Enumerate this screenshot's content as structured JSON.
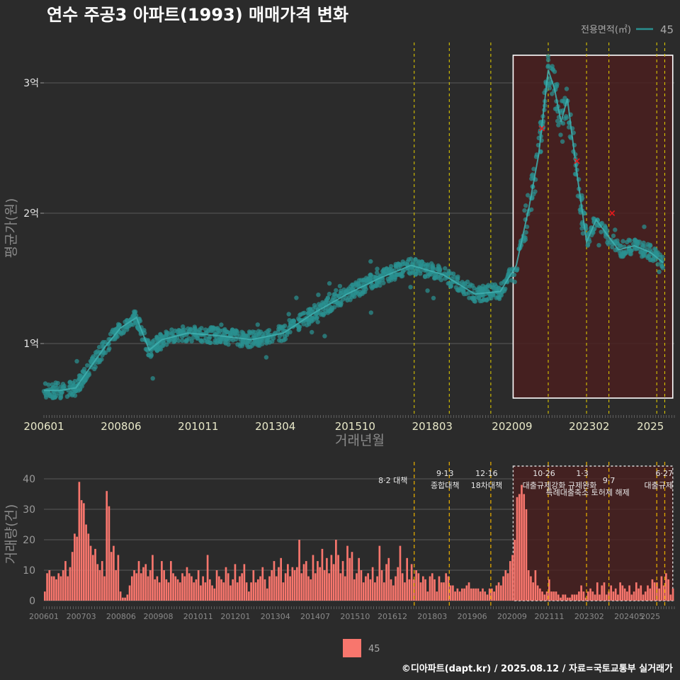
{
  "chart_data": [
    {
      "type": "scatter",
      "title": "연수 주공3 아파트(1993) 매매가격 변화",
      "xlabel": "거래년월",
      "ylabel": "평균가(원)",
      "x_tick_labels": [
        "200601",
        "200806",
        "201011",
        "201304",
        "201510",
        "201803",
        "202009",
        "202302",
        "2025"
      ],
      "y_ticks": [
        {
          "value": 1,
          "label": "1억"
        },
        {
          "value": 2,
          "label": "2억"
        },
        {
          "value": 3,
          "label": "3억"
        }
      ],
      "ylim": [
        0.5,
        3.25
      ],
      "y_unit": "억",
      "legend_title": "전용면적(㎡)",
      "legend_label": "45",
      "series_color": "#2a9090",
      "trend_points": [
        {
          "x": 2006.0,
          "y": 0.64
        },
        {
          "x": 2006.5,
          "y": 0.64
        },
        {
          "x": 2007.0,
          "y": 0.66
        },
        {
          "x": 2007.4,
          "y": 0.8
        },
        {
          "x": 2007.9,
          "y": 0.97
        },
        {
          "x": 2008.4,
          "y": 1.12
        },
        {
          "x": 2008.9,
          "y": 1.2
        },
        {
          "x": 2009.3,
          "y": 0.95
        },
        {
          "x": 2009.7,
          "y": 1.03
        },
        {
          "x": 2010.5,
          "y": 1.08
        },
        {
          "x": 2011.5,
          "y": 1.06
        },
        {
          "x": 2012.5,
          "y": 1.03
        },
        {
          "x": 2013.5,
          "y": 1.08
        },
        {
          "x": 2014.5,
          "y": 1.24
        },
        {
          "x": 2015.5,
          "y": 1.38
        },
        {
          "x": 2016.5,
          "y": 1.5
        },
        {
          "x": 2017.5,
          "y": 1.6
        },
        {
          "x": 2018.5,
          "y": 1.53
        },
        {
          "x": 2019.5,
          "y": 1.38
        },
        {
          "x": 2020.3,
          "y": 1.4
        },
        {
          "x": 2020.8,
          "y": 1.6
        },
        {
          "x": 2021.2,
          "y": 2.05
        },
        {
          "x": 2021.5,
          "y": 2.45
        },
        {
          "x": 2021.8,
          "y": 3.1
        },
        {
          "x": 2022.0,
          "y": 2.95
        },
        {
          "x": 2022.2,
          "y": 2.7
        },
        {
          "x": 2022.4,
          "y": 2.88
        },
        {
          "x": 2022.7,
          "y": 2.3
        },
        {
          "x": 2023.0,
          "y": 1.78
        },
        {
          "x": 2023.3,
          "y": 1.95
        },
        {
          "x": 2023.6,
          "y": 1.85
        },
        {
          "x": 2024.0,
          "y": 1.72
        },
        {
          "x": 2024.5,
          "y": 1.75
        },
        {
          "x": 2025.0,
          "y": 1.7
        },
        {
          "x": 2025.4,
          "y": 1.62
        }
      ],
      "red_markers": [
        {
          "x": 2021.6,
          "y": 2.65
        },
        {
          "x": 2022.7,
          "y": 2.4
        },
        {
          "x": 2023.8,
          "y": 2.0
        }
      ],
      "policy_lines_x": [
        2017.6,
        2018.7,
        2020.0,
        2021.8,
        2023.0,
        2023.7,
        2025.2,
        2025.45
      ],
      "highlight_range_x": [
        2020.7,
        2025.7
      ]
    },
    {
      "type": "bar",
      "xlabel": "",
      "ylabel": "거래량(건)",
      "x_tick_labels": [
        "200601",
        "200703",
        "200806",
        "200908",
        "201011",
        "201201",
        "201304",
        "201407",
        "201510",
        "201612",
        "201803",
        "201906",
        "202009",
        "202111",
        "202302",
        "202405",
        "2025"
      ],
      "y_ticks": [
        0,
        10,
        20,
        30,
        40
      ],
      "ylim": [
        0,
        44
      ],
      "bar_color": "#f8766d",
      "legend_label": "45",
      "start_month": "2006-01",
      "monthly_values": [
        3,
        9,
        10,
        8,
        8,
        7,
        9,
        8,
        10,
        13,
        8,
        11,
        16,
        22,
        21,
        39,
        33,
        32,
        25,
        22,
        18,
        15,
        17,
        12,
        10,
        13,
        8,
        36,
        31,
        16,
        18,
        10,
        15,
        3,
        1,
        1,
        2,
        5,
        8,
        10,
        9,
        13,
        9,
        11,
        12,
        8,
        10,
        15,
        7,
        8,
        6,
        13,
        10,
        7,
        6,
        13,
        9,
        8,
        7,
        6,
        9,
        8,
        11,
        9,
        8,
        6,
        7,
        10,
        5,
        8,
        6,
        15,
        7,
        5,
        4,
        10,
        8,
        7,
        6,
        11,
        9,
        5,
        7,
        12,
        6,
        8,
        9,
        12,
        6,
        3,
        6,
        10,
        6,
        7,
        8,
        11,
        7,
        4,
        8,
        10,
        13,
        8,
        11,
        14,
        6,
        9,
        12,
        8,
        11,
        10,
        11,
        20,
        9,
        12,
        13,
        8,
        7,
        15,
        9,
        13,
        11,
        17,
        10,
        14,
        9,
        15,
        12,
        20,
        15,
        9,
        13,
        8,
        18,
        14,
        16,
        7,
        9,
        14,
        10,
        6,
        8,
        9,
        7,
        11,
        6,
        8,
        18,
        10,
        6,
        12,
        14,
        7,
        5,
        8,
        11,
        18,
        9,
        6,
        14,
        7,
        12,
        7,
        10,
        9,
        6,
        8,
        7,
        3,
        8,
        9,
        7,
        3,
        8,
        6,
        6,
        9,
        8,
        5,
        5,
        3,
        4,
        3,
        4,
        4,
        5,
        6,
        4,
        4,
        4,
        4,
        3,
        4,
        3,
        2,
        4,
        4,
        3,
        5,
        6,
        5,
        8,
        10,
        9,
        13,
        15,
        20,
        34,
        35,
        38,
        35,
        30,
        10,
        8,
        6,
        10,
        5,
        4,
        3,
        2,
        3,
        7,
        3,
        3,
        3,
        2,
        1,
        2,
        2,
        1,
        1,
        2,
        2,
        2,
        3,
        5,
        3,
        1,
        3,
        4,
        3,
        2,
        6,
        2,
        5,
        6,
        2,
        3,
        5,
        3,
        4,
        2,
        6,
        5,
        4,
        3,
        5,
        2,
        3,
        6,
        4,
        5,
        2,
        3,
        5,
        4,
        7,
        6,
        6,
        4,
        8,
        5,
        9,
        7,
        2,
        4
      ],
      "annotations": [
        {
          "x": 2017.6,
          "line1": "",
          "line2": "8·2 대책",
          "row": 1
        },
        {
          "x": 2018.7,
          "line1": "9·13",
          "line2": "종합대책",
          "row": 0
        },
        {
          "x": 2020.0,
          "line1": "12·16",
          "line2": "18차대책",
          "row": 0
        },
        {
          "x": 2021.8,
          "line1": "10·26",
          "line2": "대출규제강화",
          "row": 0
        },
        {
          "x": 2023.0,
          "line1": "1·3",
          "line2": "규제완화",
          "row": 0
        },
        {
          "x": 2023.7,
          "line1": "9·7",
          "line2": "특례대출축소 토허제 해제",
          "row": 1
        },
        {
          "x": 2025.45,
          "line1": "6·27",
          "line2": "대출규제",
          "row": 0
        }
      ],
      "highlight_range_x": [
        2020.7,
        2025.7
      ]
    }
  ],
  "footer": "©디아파트(dapt.kr) / 2025.08.12 / 자료=국토교통부 실거래가"
}
